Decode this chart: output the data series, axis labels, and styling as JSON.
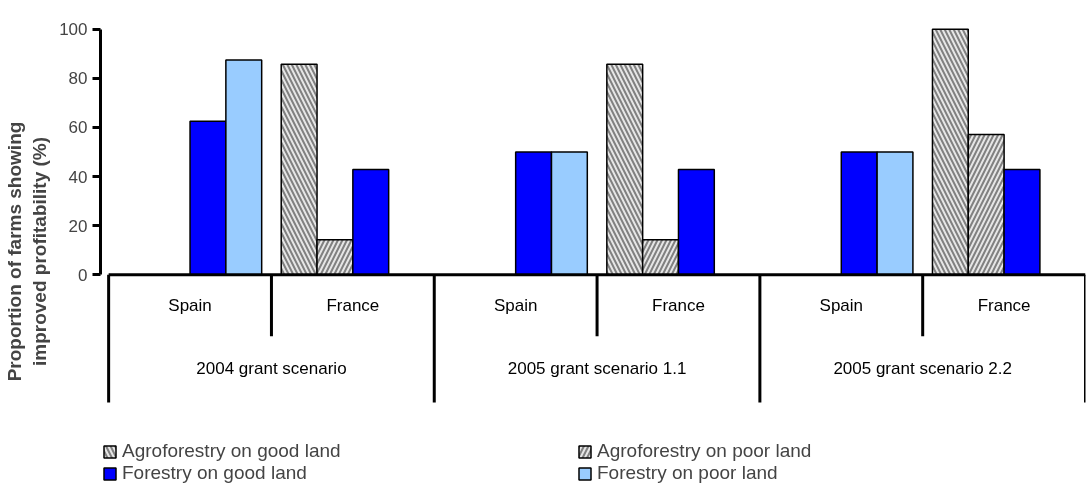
{
  "chart_data": {
    "type": "bar",
    "ylabel": "Proportion of farms showing\nimproved profitability (%)",
    "categories": [
      "Spain",
      "France",
      "Spain",
      "France",
      "Spain",
      "France"
    ],
    "annotations": [
      "2004 grant scenario",
      "2005 grant scenario 1.1",
      "2005 grant scenario 2.2"
    ],
    "series": [
      {
        "name": "Agroforestry on good land",
        "color": "#e6e6e6",
        "values": [
          null,
          85.7,
          null,
          85.7,
          null,
          100
        ]
      },
      {
        "name": "Agroforestry on poor land",
        "color": "#e6e6e6",
        "values": [
          null,
          14.3,
          null,
          14.3,
          null,
          57.1
        ]
      },
      {
        "name": "Forestry on good land",
        "color": "#0000ff",
        "values": [
          62.5,
          42.9,
          50,
          42.9,
          50,
          42.9
        ]
      },
      {
        "name": "Forestry on poor land",
        "color": "#99ccff",
        "values": [
          87.5,
          null,
          50,
          null,
          50,
          null
        ]
      }
    ],
    "ylim": [
      0,
      100
    ],
    "yticks": [
      0,
      20,
      40,
      60,
      80,
      100
    ],
    "grid": false,
    "legend": "bottom"
  }
}
